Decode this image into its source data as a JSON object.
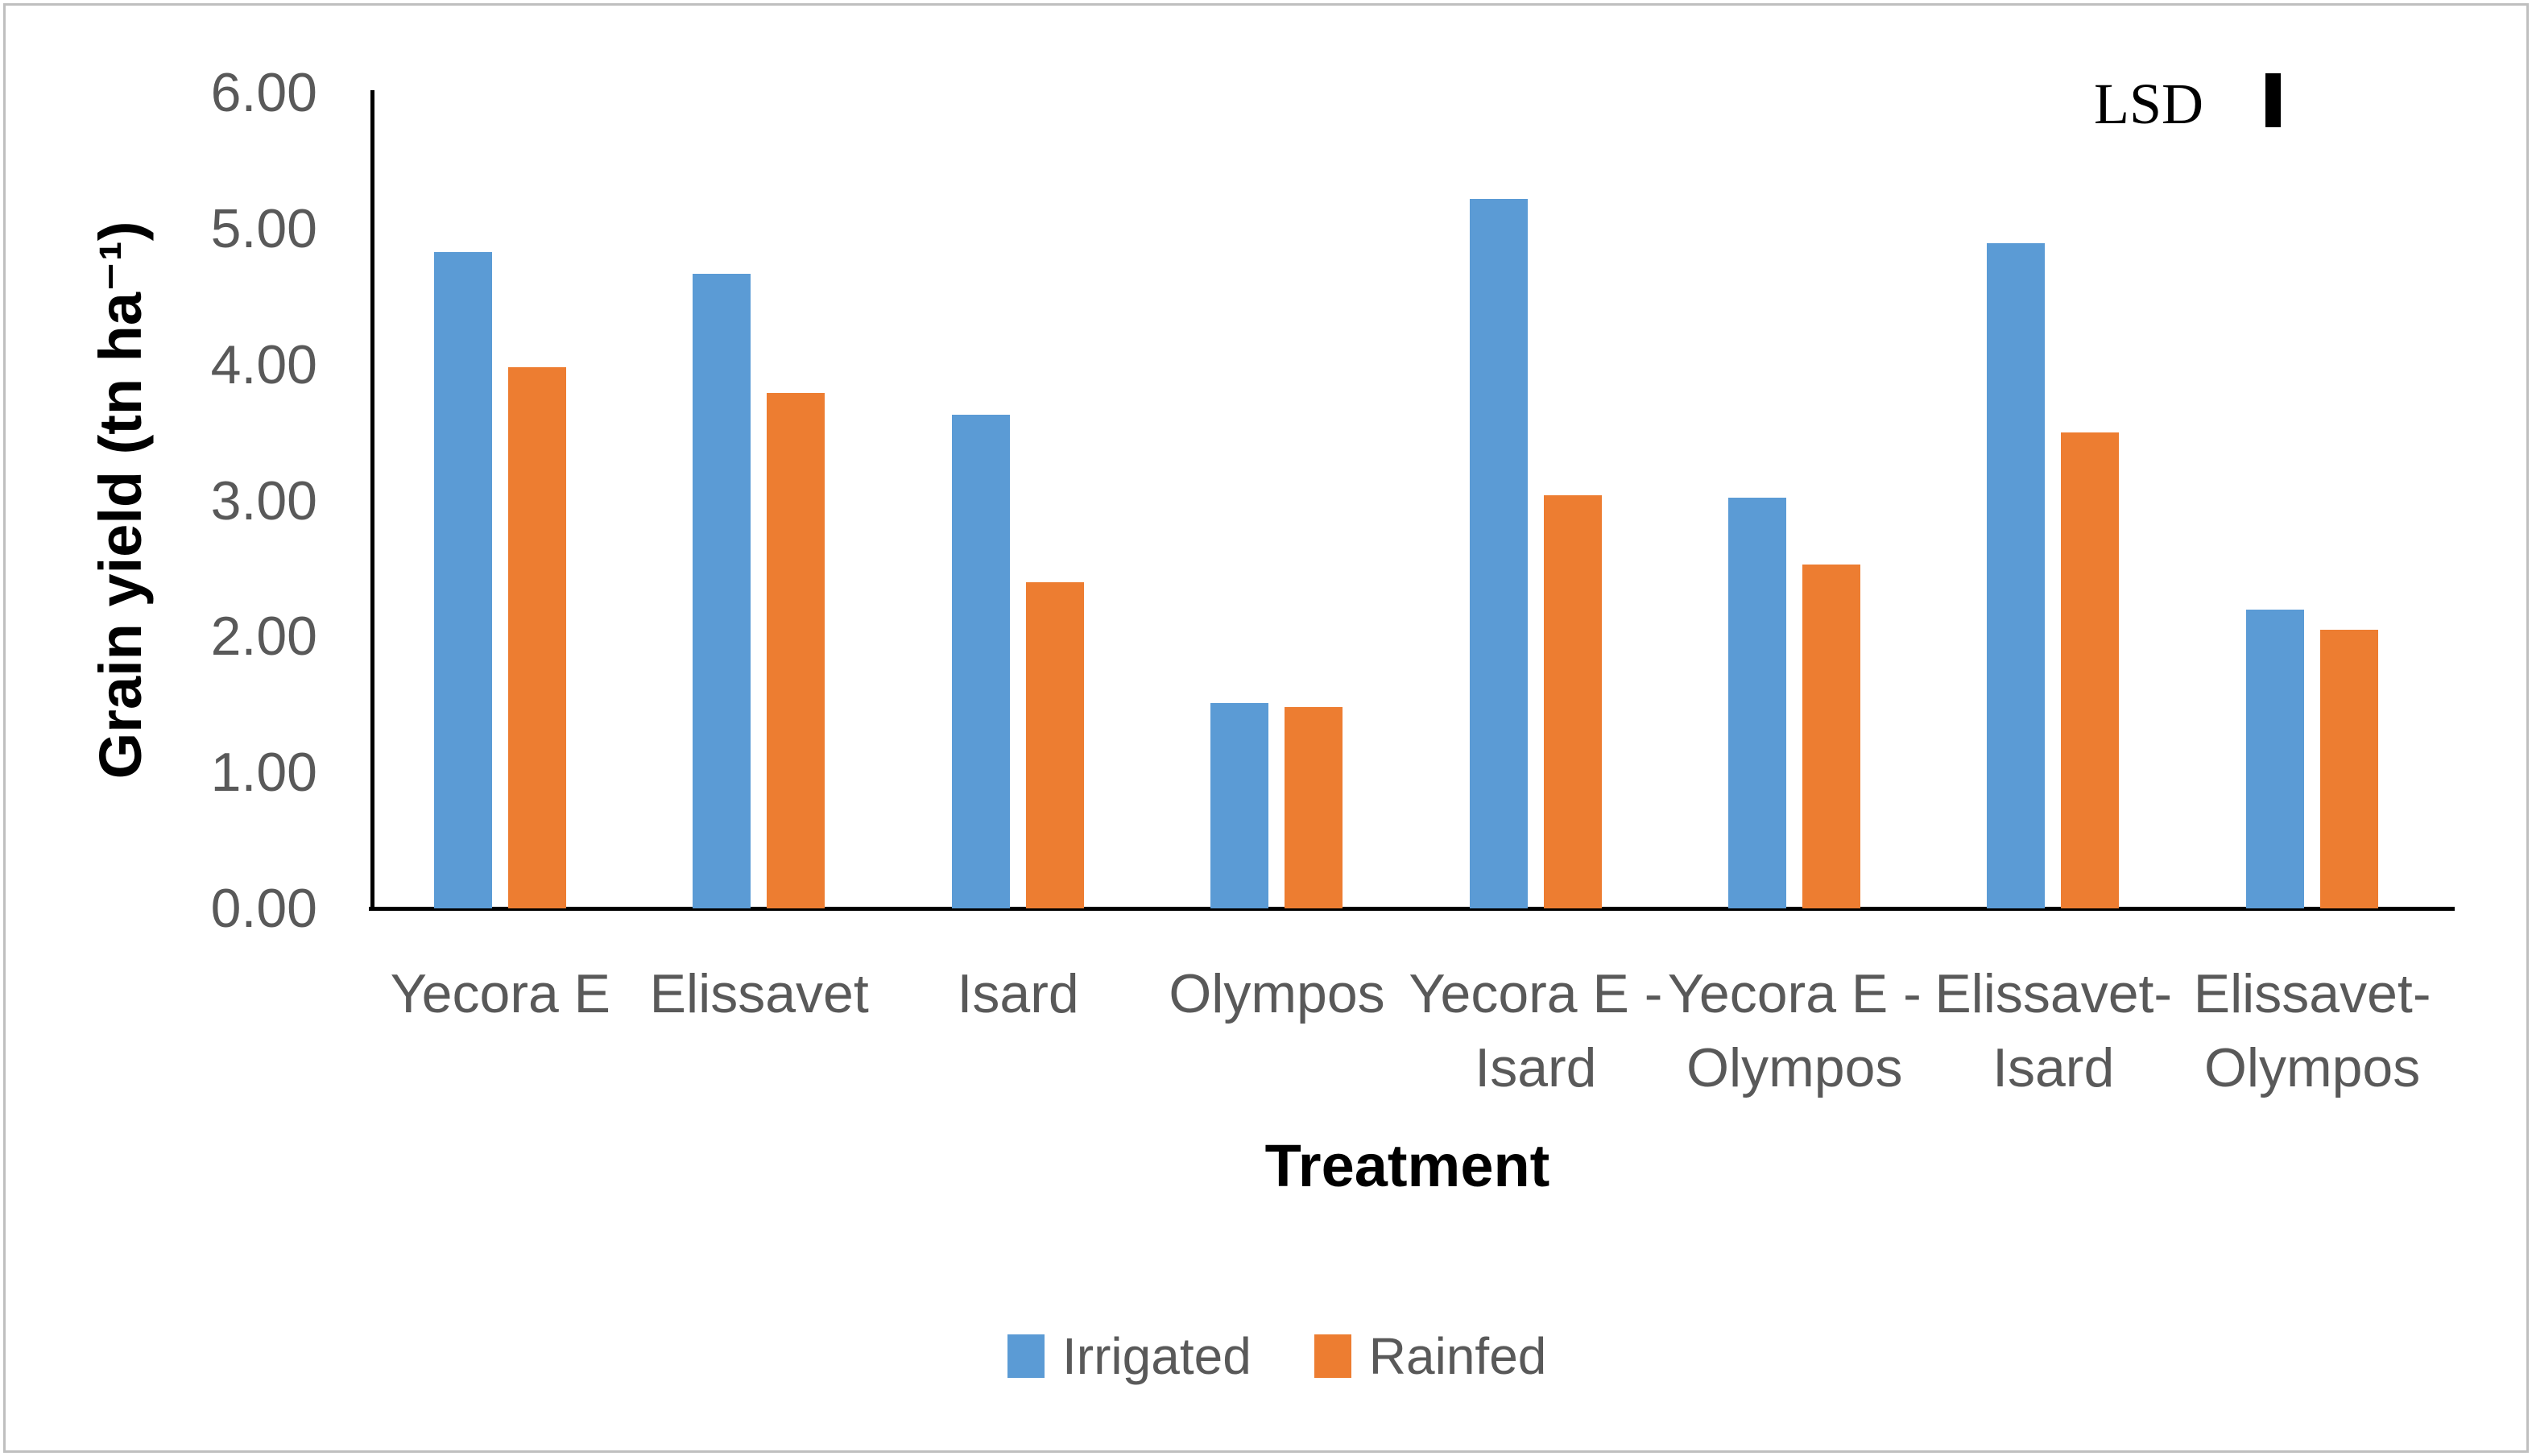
{
  "frame": {
    "border_color": "#BFBFBF",
    "background": "#FFFFFF"
  },
  "chart_data": {
    "type": "bar",
    "title": "",
    "categories": [
      "Yecora E",
      "Elissavet",
      "Isard",
      "Olympos",
      "Yecora E -\nIsard",
      "Yecora E -\nOlympos",
      "Elissavet-\nIsard",
      "Elissavet-\nOlympos"
    ],
    "series": [
      {
        "name": "Irrigated",
        "color": "#5B9BD5",
        "values": [
          4.83,
          4.67,
          3.63,
          1.51,
          5.22,
          3.02,
          4.89,
          2.2
        ]
      },
      {
        "name": "Rainfed",
        "color": "#ED7D31",
        "values": [
          3.98,
          3.79,
          2.4,
          1.48,
          3.04,
          2.53,
          3.5,
          2.05
        ]
      }
    ],
    "xlabel": "Treatment",
    "ylabel": "Grain yield (tn ha⁻¹)",
    "ylim": [
      0,
      6
    ],
    "ytick_step": 1,
    "ytick_labels": [
      "0.00",
      "1.00",
      "2.00",
      "3.00",
      "4.00",
      "5.00",
      "6.00"
    ],
    "grid": false,
    "legend_position": "bottom",
    "annotations": [
      {
        "name": "LSD",
        "label": "LSD",
        "marker": "vertical-bar",
        "bar_value_units": 0.4,
        "color": "#000000"
      }
    ]
  },
  "legend": {
    "items": [
      {
        "label": "Irrigated",
        "color": "#5B9BD5"
      },
      {
        "label": "Rainfed",
        "color": "#ED7D31"
      }
    ]
  },
  "text_colors": {
    "axis_text": "#595959",
    "title_text": "#000000"
  }
}
